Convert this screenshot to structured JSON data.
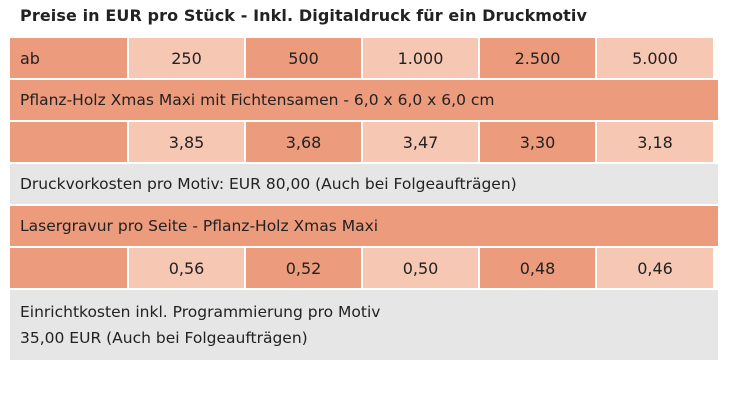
{
  "title": "Preise in EUR pro Stück - Inkl. Digitaldruck für ein Druckmotiv",
  "header_row": [
    "ab",
    "250",
    "500",
    "1.000",
    "2.500",
    "5.000"
  ],
  "product1": {
    "name": "Pflanz-Holz Xmas Maxi mit Fichtensamen - 6,0 x 6,0 x 6,0 cm",
    "prices": [
      "3,85",
      "3,68",
      "3,47",
      "3,30",
      "3,18"
    ],
    "note": "Druckvorkosten pro Motiv: EUR 80,00 (Auch bei Folgeaufträgen)"
  },
  "product2": {
    "name": "Lasergravur pro Seite - Pflanz-Holz Xmas Maxi",
    "prices": [
      "0,56",
      "0,52",
      "0,50",
      "0,48",
      "0,46"
    ],
    "note_line1": "Einrichtkosten inkl. Programmierung pro Motiv",
    "note_line2": "35,00 EUR (Auch bei Folgeaufträgen)"
  },
  "colors": {
    "dark": "#ec9b7c",
    "light": "#f6c7b2",
    "grey": "#e6e6e6"
  }
}
